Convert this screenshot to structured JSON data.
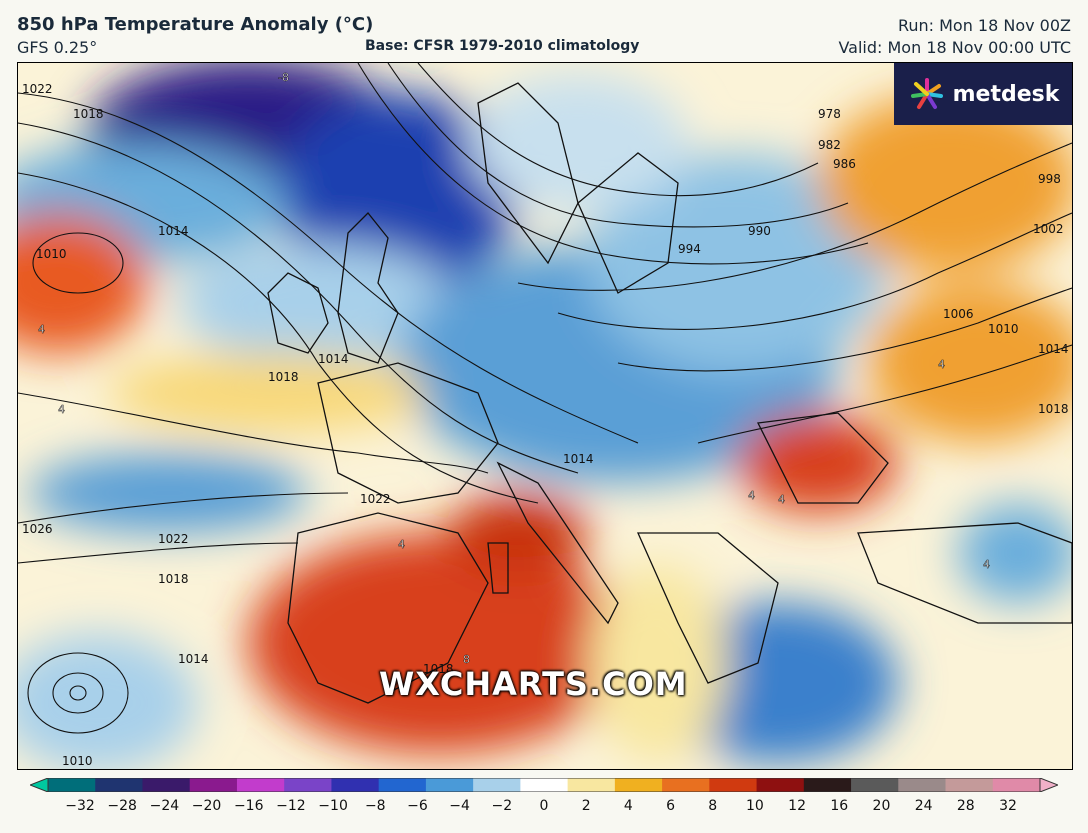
{
  "header": {
    "title": "850 hPa Temperature Anomaly (°C)",
    "model": "GFS 0.25°",
    "base": "Base: CFSR 1979-2010 climatology",
    "run": "Run: Mon 18 Nov 00Z",
    "valid": "Valid: Mon 18 Nov 00:00 UTC"
  },
  "brand": {
    "name": "metdesk",
    "icon": "metdesk-flower-icon"
  },
  "watermark": "WXCHARTS.COM",
  "map": {
    "isobar_labels": [
      "1022",
      "1018",
      "1014",
      "1010",
      "1014",
      "1018",
      "1022",
      "1026",
      "1022",
      "1018",
      "1014",
      "1010",
      "994",
      "990",
      "986",
      "982",
      "978",
      "998",
      "1002",
      "1006",
      "1010",
      "1014",
      "1018",
      "1014",
      "1022",
      "1018",
      "1014"
    ],
    "anomaly_labels": [
      "-8",
      "4",
      "4",
      "4",
      "4",
      "4",
      "4",
      "4",
      "4",
      "8",
      "8",
      "4",
      "4"
    ]
  },
  "colorbar": {
    "ticks": [
      "−32",
      "−28",
      "−24",
      "−20",
      "−16",
      "−12",
      "−10",
      "−8",
      "−6",
      "−4",
      "−2",
      "0",
      "2",
      "4",
      "6",
      "8",
      "10",
      "12",
      "16",
      "20",
      "24",
      "28",
      "32"
    ],
    "colors": [
      "#00c8a0",
      "#006e7a",
      "#1f3470",
      "#3a1a6a",
      "#8a1a8e",
      "#c23ccc",
      "#7a44c8",
      "#3030b0",
      "#2266d0",
      "#4a9ad8",
      "#a8d0ea",
      "#ffffff",
      "#f8e7a0",
      "#f0b020",
      "#e87020",
      "#d03a10",
      "#8e1010",
      "#2a1a1a",
      "#5a5a5a",
      "#9a8a8a",
      "#c49a9a",
      "#e08aa8",
      "#f0b0c8"
    ]
  }
}
